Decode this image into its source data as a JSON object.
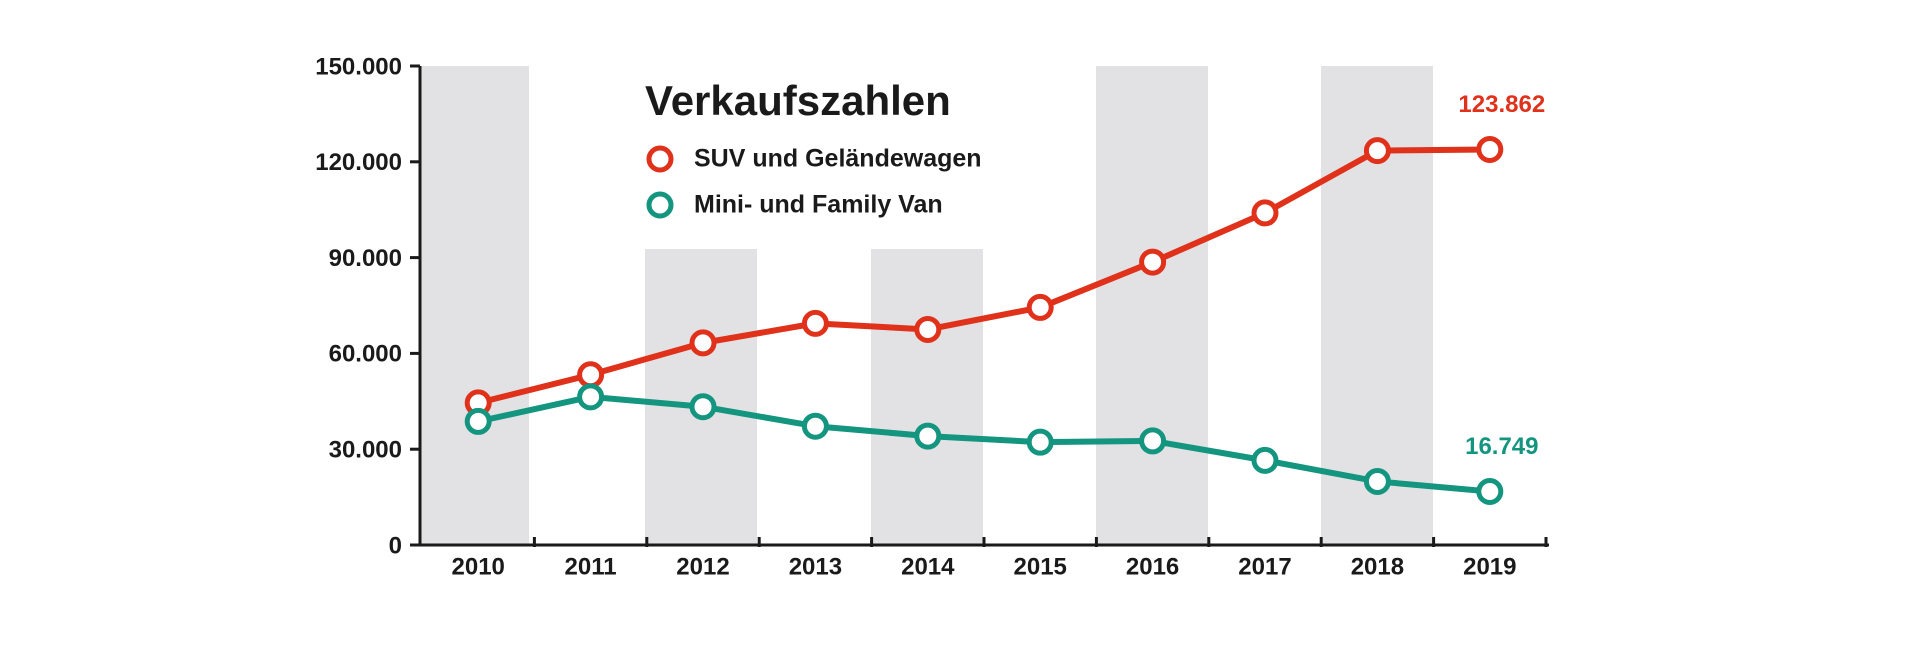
{
  "chart_data": {
    "type": "line",
    "title": "Verkaufszahlen",
    "categories": [
      "2010",
      "2011",
      "2012",
      "2013",
      "2014",
      "2015",
      "2016",
      "2017",
      "2018",
      "2019"
    ],
    "series": [
      {
        "name": "SUV und Geländewagen",
        "color": "#e0311b",
        "values": [
          44500,
          53300,
          63300,
          69400,
          67500,
          74400,
          88600,
          104000,
          123500,
          123862
        ],
        "value_labels": [
          null,
          null,
          null,
          null,
          null,
          null,
          null,
          null,
          null,
          "123.862"
        ]
      },
      {
        "name": "Mini- und Family Van",
        "color": "#13957f",
        "values": [
          38700,
          46400,
          43300,
          37200,
          34100,
          32200,
          32600,
          26500,
          19900,
          16749
        ],
        "value_labels": [
          null,
          null,
          null,
          null,
          null,
          null,
          null,
          null,
          null,
          "16.749"
        ]
      }
    ],
    "ylim": [
      0,
      150000
    ],
    "yticks": [
      0,
      {
        "value": 30000,
        "label": "30.000"
      },
      {
        "value": 60000,
        "label": "60.000"
      },
      {
        "value": 90000,
        "label": "90.000"
      },
      {
        "value": 120000,
        "label": "120.000"
      },
      {
        "value": 150000,
        "label": "150.000"
      }
    ],
    "legend": "top-left"
  }
}
